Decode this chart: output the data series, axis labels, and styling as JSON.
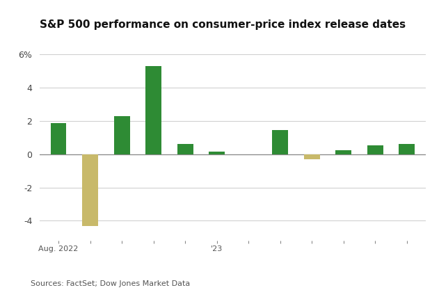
{
  "title": "S&P 500 performance on consumer-price index release dates",
  "values": [
    1.85,
    -4.3,
    2.3,
    5.3,
    0.6,
    0.15,
    0.0,
    1.45,
    -0.3,
    0.22,
    0.55,
    0.6
  ],
  "bar_colors": [
    "#2e8b34",
    "#c8b96a",
    "#2e8b34",
    "#2e8b34",
    "#2e8b34",
    "#2e8b34",
    "#2e8b34",
    "#2e8b34",
    "#c8b96a",
    "#2e8b34",
    "#2e8b34",
    "#2e8b34"
  ],
  "x_labels_bottom": [
    "Aug. 2022",
    "",
    "",
    "",
    "",
    "'23",
    "",
    "",
    "",
    "",
    "",
    ""
  ],
  "x_tick_positions": [
    0,
    1,
    2,
    3,
    4,
    5,
    6,
    7,
    8,
    9,
    10,
    11
  ],
  "yticks": [
    -4,
    -2,
    0,
    2,
    4,
    6
  ],
  "ylim": [
    -5.2,
    7.0
  ],
  "source": "Sources: FactSet; Dow Jones Market Data",
  "background_color": "#ffffff",
  "grid_color": "#d0d0d0",
  "bar_width": 0.5,
  "title_fontsize": 11,
  "source_fontsize": 8
}
